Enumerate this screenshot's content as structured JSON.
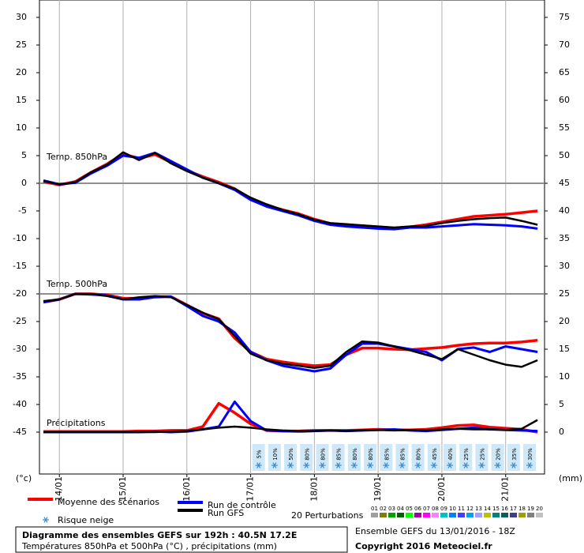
{
  "chart_data": {
    "type": "line",
    "labels": {
      "t850": "Temp. 850hPa",
      "t500": "Temp. 500hPa",
      "precip": "Précipitations"
    },
    "y_unit": "(°c)",
    "y2_unit": "(mm)",
    "x": [
      0,
      1,
      2,
      3,
      4,
      5,
      6,
      7,
      8,
      9,
      10,
      11,
      12,
      13,
      14,
      15,
      16,
      17,
      18,
      19,
      20,
      21,
      22,
      23,
      24,
      25,
      26,
      27,
      28,
      29,
      30,
      31
    ],
    "xlim": [
      -0.25,
      31.44
    ],
    "xticks": [
      {
        "value": 1,
        "label": "14/01"
      },
      {
        "value": 5,
        "label": "15/01"
      },
      {
        "value": 9,
        "label": "16/01"
      },
      {
        "value": 13,
        "label": "17/01"
      },
      {
        "value": 17,
        "label": "18/01"
      },
      {
        "value": 21,
        "label": "19/01"
      },
      {
        "value": 25,
        "label": "20/01"
      },
      {
        "value": 29,
        "label": "21/01"
      }
    ],
    "ylim": [
      -52.57,
      33.14
    ],
    "yticks": [
      30,
      25,
      20,
      15,
      10,
      5,
      0,
      -5,
      -10,
      -15,
      -20,
      -25,
      -30,
      -35,
      -40,
      -45
    ],
    "y2lim": [
      -7.57,
      78.14
    ],
    "y2ticks": [
      75,
      70,
      65,
      60,
      55,
      50,
      45,
      40,
      35,
      30,
      25,
      20,
      15,
      10,
      5,
      0
    ],
    "reference_lines": [
      0,
      -20
    ],
    "grid": true,
    "series": [
      {
        "name": "Moyenne des scénarios",
        "color": "#ff0000",
        "line_width": 3.5,
        "t850": [
          0.3,
          -0.3,
          0.3,
          2,
          3.5,
          5.3,
          4.5,
          5.2,
          3.8,
          2.3,
          1.2,
          0.2,
          -1,
          -2.8,
          -4,
          -4.8,
          -5.5,
          -6.5,
          -7.3,
          -7.6,
          -7.7,
          -7.9,
          -8.1,
          -7.9,
          -7.5,
          -7,
          -6.5,
          -6,
          -5.8,
          -5.6,
          -5.3,
          -5
        ],
        "t500": [
          -21.5,
          -21,
          -20,
          -20,
          -20.2,
          -20.8,
          -20.8,
          -20.5,
          -20.5,
          -22,
          -23.5,
          -24.5,
          -28,
          -30.5,
          -31.8,
          -32.3,
          -32.7,
          -33,
          -32.8,
          -31,
          -29.8,
          -29.8,
          -30,
          -30.1,
          -29.9,
          -29.7,
          -29.3,
          -29,
          -28.9,
          -28.9,
          -28.7,
          -28.4
        ],
        "precip": [
          0.1,
          0.1,
          0.1,
          0.1,
          0.1,
          0.1,
          0.2,
          0.2,
          0.3,
          0.3,
          1,
          5.2,
          3.5,
          1.5,
          0.3,
          0.2,
          0.2,
          0.3,
          0.3,
          0.3,
          0.4,
          0.5,
          0.4,
          0.4,
          0.5,
          0.8,
          1.2,
          1.3,
          0.9,
          0.7,
          0.5,
          0
        ]
      },
      {
        "name": "Run de contrôle",
        "color": "#0000ff",
        "line_width": 3,
        "t850": [
          0.5,
          -0.2,
          0.1,
          1.8,
          3.2,
          5,
          4.6,
          5.5,
          4,
          2.5,
          1,
          0,
          -1.2,
          -3,
          -4.2,
          -5,
          -5.8,
          -6.8,
          -7.5,
          -7.8,
          -8,
          -8.2,
          -8.3,
          -8,
          -8,
          -7.8,
          -7.6,
          -7.4,
          -7.5,
          -7.6,
          -7.8,
          -8.2
        ],
        "t500": [
          -21.5,
          -21,
          -20,
          -20.1,
          -20.3,
          -21,
          -21,
          -20.6,
          -20.5,
          -22.2,
          -24,
          -25,
          -27,
          -30.5,
          -32,
          -33,
          -33.5,
          -34,
          -33.5,
          -31,
          -29,
          -29,
          -29.5,
          -30,
          -30.5,
          -32,
          -30,
          -29.7,
          -30.5,
          -29.5,
          -30,
          -30.5
        ],
        "precip": [
          0,
          0,
          0,
          0,
          0,
          0,
          0,
          0.1,
          0,
          0.1,
          0.5,
          1,
          5.5,
          2,
          0.3,
          0.2,
          0.1,
          0.2,
          0.3,
          0.2,
          0.3,
          0.4,
          0.5,
          0.3,
          0.2,
          0.4,
          0.6,
          0.8,
          0.5,
          0.4,
          0.3,
          0.2
        ]
      },
      {
        "name": "Run GFS",
        "color": "#000000",
        "line_width": 2.5,
        "t850": [
          0.4,
          -0.2,
          0.2,
          2,
          3.4,
          5.6,
          4.2,
          5.5,
          3.6,
          2.2,
          1,
          0,
          -1,
          -2.6,
          -3.8,
          -4.8,
          -5.6,
          -6.6,
          -7.2,
          -7.4,
          -7.6,
          -7.8,
          -8,
          -7.8,
          -7.7,
          -7.2,
          -6.8,
          -6.5,
          -6.3,
          -6.2,
          -6.8,
          -7.5
        ],
        "t500": [
          -21.3,
          -21,
          -20,
          -20,
          -20.4,
          -21,
          -20.6,
          -20.4,
          -20.6,
          -22,
          -23.4,
          -24.6,
          -27.6,
          -30.8,
          -32,
          -32.6,
          -33,
          -33.4,
          -33,
          -30.5,
          -28.6,
          -28.8,
          -29.5,
          -30.2,
          -31,
          -31.8,
          -30,
          -31,
          -32,
          -32.8,
          -33.2,
          -32
        ],
        "precip": [
          0,
          0,
          0,
          0,
          0,
          0,
          0,
          0,
          0.1,
          0.2,
          0.5,
          0.8,
          1,
          0.8,
          0.5,
          0.3,
          0.2,
          0.2,
          0.3,
          0.2,
          0.3,
          0.4,
          0.3,
          0.4,
          0.3,
          0.5,
          0.6,
          0.5,
          0.5,
          0.4,
          0.6,
          2.2
        ]
      }
    ],
    "snow_risk": {
      "name": "Risque neige",
      "color": "#cfe8f8",
      "x": [
        13,
        14,
        15,
        16,
        17,
        18,
        19,
        20,
        21,
        22,
        23,
        24,
        25,
        26,
        27,
        28,
        29,
        30
      ],
      "values": [
        5,
        10,
        50,
        80,
        80,
        85,
        80,
        80,
        85,
        85,
        80,
        45,
        40,
        25,
        25,
        20,
        35,
        30
      ],
      "value_labels": [
        "5%",
        "10%",
        "50%",
        "80%",
        "80%",
        "85%",
        "80%",
        "80%",
        "85%",
        "85%",
        "80%",
        "45%",
        "40%",
        "25%",
        "25%",
        "20%",
        "35%",
        "30%"
      ]
    },
    "perturbations": {
      "label": "20 Perturbations",
      "members": [
        {
          "name": "01",
          "color": "#a0a0a0"
        },
        {
          "name": "02",
          "color": "#808000"
        },
        {
          "name": "03",
          "color": "#00a000"
        },
        {
          "name": "04",
          "color": "#006000"
        },
        {
          "name": "05",
          "color": "#00ff00"
        },
        {
          "name": "06",
          "color": "#a000a0"
        },
        {
          "name": "07",
          "color": "#ff00ff"
        },
        {
          "name": "08",
          "color": "#ff80ff"
        },
        {
          "name": "09",
          "color": "#00c0c0"
        },
        {
          "name": "10",
          "color": "#0080ff"
        },
        {
          "name": "11",
          "color": "#4040ff"
        },
        {
          "name": "12",
          "color": "#00a0ff"
        },
        {
          "name": "13",
          "color": "#a0a0ff"
        },
        {
          "name": "14",
          "color": "#c0c000"
        },
        {
          "name": "15",
          "color": "#008080"
        },
        {
          "name": "16",
          "color": "#006060"
        },
        {
          "name": "17",
          "color": "#404080"
        },
        {
          "name": "18",
          "color": "#a0a000"
        },
        {
          "name": "19",
          "color": "#808080"
        },
        {
          "name": "20",
          "color": "#c0c0c0"
        }
      ]
    },
    "footer": {
      "title": "Diagramme des ensembles GEFS sur 192h : 40.5N 17.2E",
      "subtitle": "Températures 850hPa et 500hPa (°C) , précipitations (mm)",
      "run": "Ensemble GEFS du 13/01/2016 - 18Z",
      "copyright": "Copyright 2016 Meteociel.fr"
    }
  }
}
